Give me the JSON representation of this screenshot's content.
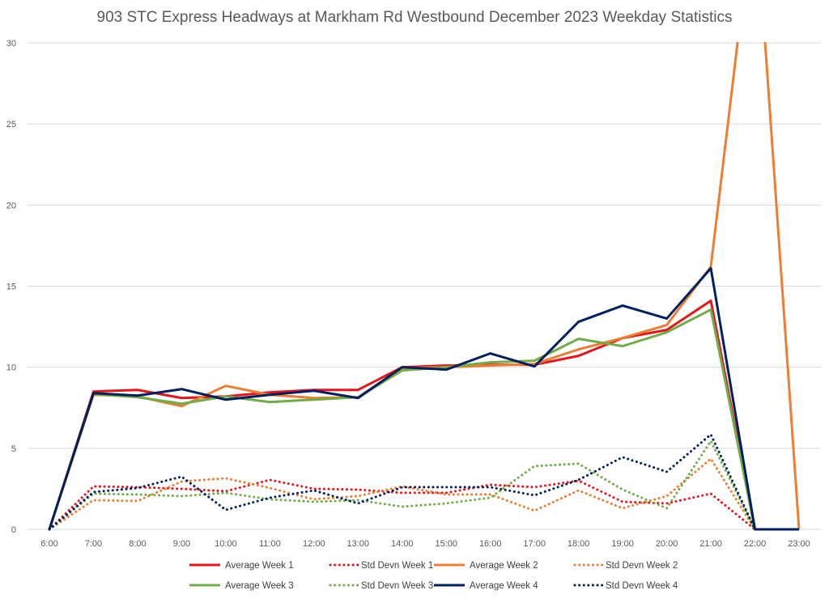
{
  "chart_data": {
    "type": "line",
    "title": "903 STC Express Headways at Markham Rd Westbound December 2023 Weekday Statistics",
    "xlabel": "",
    "ylabel": "",
    "x": [
      "6:00",
      "7:00",
      "8:00",
      "9:00",
      "10:00",
      "11:00",
      "12:00",
      "13:00",
      "14:00",
      "15:00",
      "16:00",
      "17:00",
      "18:00",
      "19:00",
      "20:00",
      "21:00",
      "22:00",
      "23:00"
    ],
    "ylim": [
      0,
      30
    ],
    "yticks": [
      "0",
      "5",
      "10",
      "15",
      "20",
      "25",
      "30"
    ],
    "grid": true,
    "legend_position": "bottom",
    "series": [
      {
        "name": "Average Week 1",
        "color": "#E8141C",
        "style": "solid",
        "values": [
          0,
          8.5,
          8.6,
          8.1,
          8.2,
          8.45,
          8.6,
          8.6,
          10.0,
          10.1,
          10.15,
          10.15,
          10.7,
          11.8,
          12.3,
          14.1,
          0,
          0
        ]
      },
      {
        "name": "Std Devn Week 1",
        "color": "#E8141C",
        "style": "dotted",
        "values": [
          0,
          2.65,
          2.6,
          2.5,
          2.35,
          3.05,
          2.5,
          2.45,
          2.25,
          2.25,
          2.75,
          2.6,
          3.0,
          1.7,
          1.6,
          2.2,
          0,
          null
        ]
      },
      {
        "name": "Average Week 2",
        "color": "#ED7D31",
        "style": "solid",
        "values": [
          0,
          8.3,
          8.2,
          7.6,
          8.85,
          8.3,
          8.1,
          8.15,
          9.95,
          10.0,
          10.1,
          10.2,
          11.1,
          11.8,
          12.6,
          16.2,
          39,
          0
        ]
      },
      {
        "name": "Std Devn Week 2",
        "color": "#ED7D31",
        "style": "dotted",
        "values": [
          0,
          1.8,
          1.75,
          2.95,
          3.15,
          2.55,
          1.85,
          2.05,
          2.65,
          2.15,
          2.15,
          1.15,
          2.4,
          1.3,
          2.05,
          4.35,
          0,
          null
        ]
      },
      {
        "name": "Average Week 3",
        "color": "#70AD47",
        "style": "solid",
        "values": [
          0,
          8.35,
          8.15,
          7.75,
          8.2,
          7.85,
          8.0,
          8.15,
          9.8,
          10.0,
          10.3,
          10.4,
          11.75,
          11.3,
          12.15,
          13.55,
          0,
          0
        ]
      },
      {
        "name": "Std Devn Week 3",
        "color": "#70AD47",
        "style": "dotted",
        "values": [
          0,
          2.2,
          2.15,
          2.05,
          2.25,
          1.85,
          1.7,
          1.8,
          1.4,
          1.6,
          1.95,
          3.9,
          4.05,
          2.45,
          1.3,
          5.45,
          0,
          null
        ]
      },
      {
        "name": "Average Week 4",
        "color": "#002060",
        "style": "solid",
        "values": [
          0,
          8.4,
          8.25,
          8.65,
          8.0,
          8.3,
          8.55,
          8.1,
          10.0,
          9.85,
          10.85,
          10.05,
          12.8,
          13.8,
          13.0,
          16.1,
          0,
          0
        ]
      },
      {
        "name": "Std Devn Week 4",
        "color": "#002060",
        "style": "dotted",
        "values": [
          0,
          2.3,
          2.55,
          3.25,
          1.2,
          1.95,
          2.4,
          1.6,
          2.6,
          2.6,
          2.6,
          2.1,
          3.05,
          4.45,
          3.55,
          5.85,
          0,
          null
        ]
      }
    ]
  }
}
